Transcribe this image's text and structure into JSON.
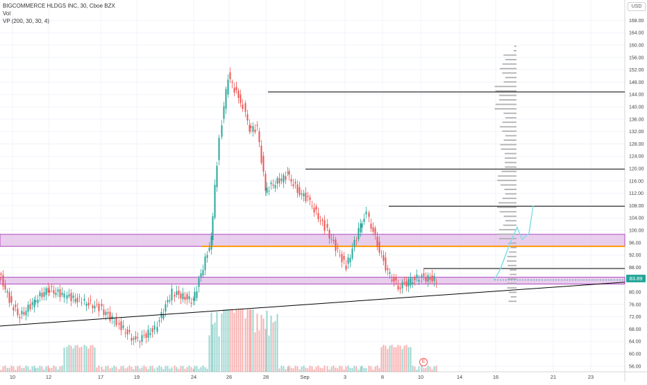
{
  "legend": {
    "symbol_line": "BIGCOMMERCE HLDGS INC, 30, Cboe BZX",
    "vol_label": "Vol",
    "vp_label": "VP (200, 30, 30, 4)"
  },
  "currency": "USD",
  "last_price_label": "83.89",
  "earnings_badge": "E",
  "colors": {
    "up": "#26a69a",
    "down": "#ef5350",
    "zone_fill": "#e1bee7",
    "zone_stroke": "#ab47bc",
    "orange": "#ff9800",
    "vp": "#b0b0b0",
    "projection": "#80deea",
    "line": "#000000"
  },
  "chart_data": {
    "type": "candlestick",
    "title": "BIGCOMMERCE HLDGS INC, 30, Cboe BZX",
    "ylim": [
      54,
      170
    ],
    "y_ticks": [
      "56.00",
      "60.00",
      "64.00",
      "68.00",
      "72.00",
      "76.00",
      "80.00",
      "84.00",
      "88.00",
      "92.00",
      "96.00",
      "100.00",
      "104.00",
      "108.00",
      "112.00",
      "116.00",
      "120.00",
      "124.00",
      "128.00",
      "132.00",
      "136.00",
      "140.00",
      "144.00",
      "148.00",
      "152.00",
      "156.00",
      "160.00",
      "164.00",
      "168.00"
    ],
    "x_ticks": [
      "10",
      "12",
      "17",
      "19",
      "24",
      "26",
      "28",
      "Sep",
      "3",
      "8",
      "10",
      "14",
      "16",
      "21",
      "23"
    ],
    "last_price": 83.89,
    "price_path": [
      {
        "date": "Aug 7",
        "price": 86
      },
      {
        "date": "Aug 10",
        "price": 76
      },
      {
        "date": "Aug 11",
        "price": 72
      },
      {
        "date": "Aug 12",
        "price": 77
      },
      {
        "date": "Aug 13",
        "price": 81
      },
      {
        "date": "Aug 14",
        "price": 79
      },
      {
        "date": "Aug 17",
        "price": 77
      },
      {
        "date": "Aug 18",
        "price": 75
      },
      {
        "date": "Aug 19",
        "price": 70
      },
      {
        "date": "Aug 20",
        "price": 64
      },
      {
        "date": "Aug 21",
        "price": 68
      },
      {
        "date": "Aug 24",
        "price": 80
      },
      {
        "date": "Aug 25",
        "price": 77
      },
      {
        "date": "Aug 26",
        "price": 97
      },
      {
        "date": "Aug 26b",
        "price": 130
      },
      {
        "date": "Aug 27",
        "price": 150
      },
      {
        "date": "Aug 27b",
        "price": 143
      },
      {
        "date": "Aug 28",
        "price": 140
      },
      {
        "date": "Aug 28b",
        "price": 133
      },
      {
        "date": "Aug 31",
        "price": 133
      },
      {
        "date": "Sep 1",
        "price": 113
      },
      {
        "date": "Sep 2",
        "price": 118
      },
      {
        "date": "Sep 3",
        "price": 113
      },
      {
        "date": "Sep 4",
        "price": 110
      },
      {
        "date": "Sep 8",
        "price": 101
      },
      {
        "date": "Sep 8b",
        "price": 88
      },
      {
        "date": "Sep 9",
        "price": 102
      },
      {
        "date": "Sep 9b",
        "price": 105
      },
      {
        "date": "Sep 10",
        "price": 96
      },
      {
        "date": "Sep 11",
        "price": 86
      },
      {
        "date": "Sep 14",
        "price": 82
      },
      {
        "date": "Sep 15",
        "price": 83
      },
      {
        "date": "Sep 16",
        "price": 85
      },
      {
        "date": "Sep 16b",
        "price": 83.89
      }
    ],
    "horizontal_levels": [
      144.8,
      119.8,
      107.8,
      87.6
    ],
    "zones": [
      {
        "name": "upper zone",
        "from": 94.8,
        "to": 98.7
      },
      {
        "name": "lower zone",
        "from": 82.6,
        "to": 84.8
      }
    ],
    "orange_level": 94.8,
    "trendline": [
      {
        "date": "Aug 7",
        "price": 69
      },
      {
        "date": "Sep 24",
        "price": 83.2
      }
    ],
    "projection_path": [
      84,
      87,
      96,
      101,
      97,
      99,
      108
    ]
  }
}
